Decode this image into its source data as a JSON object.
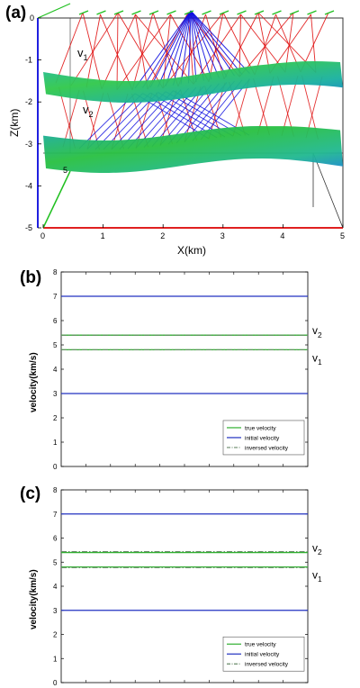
{
  "panels": [
    {
      "label": "(a)"
    },
    {
      "label": "(b)"
    },
    {
      "label": "(c)"
    }
  ],
  "chart_data": [
    {
      "type": "3d-surface",
      "panel": "(a)",
      "xlabel": "X(km)",
      "ylabel": "Z(km)",
      "x_ticks": [
        "0",
        "1",
        "2",
        "3",
        "4",
        "5"
      ],
      "z_ticks": [
        "0",
        "-1",
        "-2",
        "-3",
        "-4",
        "-5"
      ],
      "y_ticks": [
        "5"
      ],
      "xlim": [
        0,
        5
      ],
      "zlim": [
        -5,
        0
      ],
      "annotations": [
        {
          "text": "v",
          "sub": "1"
        },
        {
          "text": "v",
          "sub": "2"
        }
      ],
      "colors": {
        "source_rays": "#1010e0",
        "receiver_rays": "#e01010",
        "surface_top": "#30c040",
        "surface_mid": "#10a0a8",
        "box": "#333333",
        "x_axis": "#e02020",
        "z_axis": "#2020e0",
        "y_axis": "#20c020"
      }
    },
    {
      "type": "line",
      "panel": "(b)",
      "ylabel": "velocity(km/s)",
      "ylim": [
        0,
        8
      ],
      "y_ticks": [
        "0",
        "1",
        "2",
        "3",
        "4",
        "5",
        "6",
        "7",
        "8"
      ],
      "series": [
        {
          "name": "true velocity",
          "color": "#30b030",
          "style": "solid",
          "values": [
            4.8,
            5.4
          ]
        },
        {
          "name": "initial velocity",
          "color": "#2030c0",
          "style": "solid",
          "values": [
            3.0,
            7.0
          ]
        },
        {
          "name": "inversed velocity",
          "color": "#6a8a6a",
          "style": "dashdot",
          "values": [
            4.8,
            5.4
          ]
        }
      ],
      "right_labels": [
        {
          "text": "v",
          "sub": "2",
          "value": 5.4
        },
        {
          "text": "v",
          "sub": "1",
          "value": 4.8
        }
      ],
      "legend": "bottom-right"
    },
    {
      "type": "line",
      "panel": "(c)",
      "ylabel": "velocity(km/s)",
      "ylim": [
        0,
        8
      ],
      "y_ticks": [
        "0",
        "1",
        "2",
        "3",
        "4",
        "5",
        "6",
        "7",
        "8"
      ],
      "series": [
        {
          "name": "true velocity",
          "color": "#30b030",
          "style": "solid",
          "values": [
            4.8,
            5.4
          ]
        },
        {
          "name": "initial velocity",
          "color": "#2030c0",
          "style": "solid",
          "values": [
            3.0,
            7.0
          ]
        },
        {
          "name": "inversed velocity",
          "color": "#6a8a6a",
          "style": "dashdot",
          "values": [
            4.77,
            5.44
          ]
        }
      ],
      "right_labels": [
        {
          "text": "v",
          "sub": "2",
          "value": 5.4
        },
        {
          "text": "v",
          "sub": "1",
          "value": 4.8
        }
      ],
      "legend": "bottom-right"
    }
  ]
}
